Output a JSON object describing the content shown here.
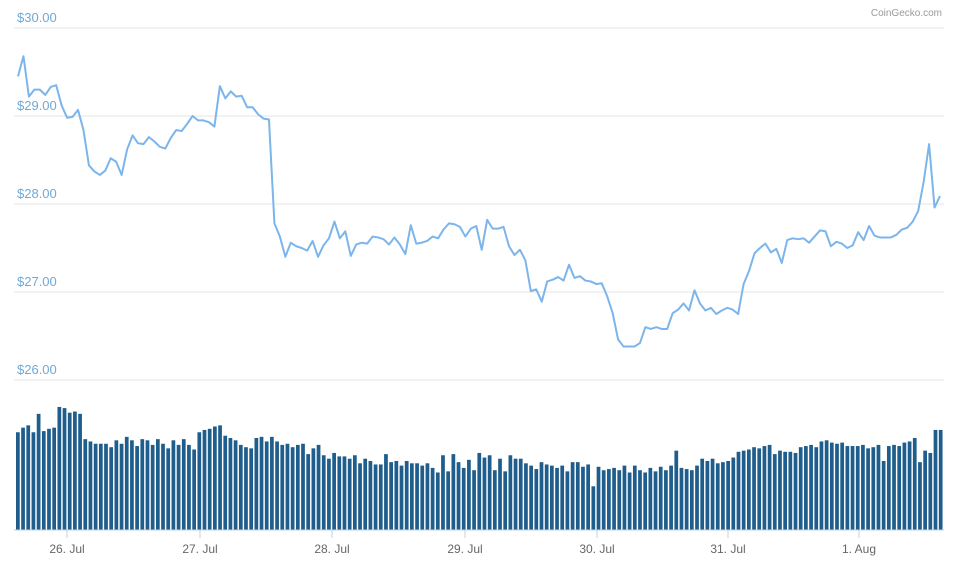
{
  "credit": "CoinGecko.com",
  "colors": {
    "price_line": "#7cb5ec",
    "volume_bar": "#1f5e8c",
    "grid": "#e6e6e6",
    "y_tick": "#6fa8d6"
  },
  "chart_data": {
    "type": "line",
    "title": "",
    "xlabel": "",
    "ylabel": "",
    "ylim": [
      26,
      30
    ],
    "y_ticks": [
      "$30.00",
      "$29.00",
      "$28.00",
      "$27.00",
      "$26.00"
    ],
    "x_ticks": [
      "26. Jul",
      "27. Jul",
      "28. Jul",
      "29. Jul",
      "30. Jul",
      "31. Jul",
      "1. Aug"
    ],
    "grid": true,
    "legend": "none",
    "series": [
      {
        "values": [
          29.45,
          29.68,
          29.22,
          29.3,
          29.3,
          29.24,
          29.33,
          29.35,
          29.12,
          28.98,
          28.99,
          29.07,
          28.84,
          28.44,
          28.37,
          28.33,
          28.38,
          28.52,
          28.48,
          28.33,
          28.62,
          28.78,
          28.69,
          28.68,
          28.76,
          28.71,
          28.65,
          28.63,
          28.75,
          28.84,
          28.83,
          28.91,
          29.0,
          28.95,
          28.95,
          28.93,
          28.88,
          29.34,
          29.2,
          29.28,
          29.22,
          29.23,
          29.1,
          29.1,
          29.02,
          28.97,
          28.96,
          27.78,
          27.63,
          27.4,
          27.56,
          27.52,
          27.5,
          27.47,
          27.58,
          27.4,
          27.53,
          27.61,
          27.8,
          27.61,
          27.69,
          27.41,
          27.54,
          27.56,
          27.55,
          27.63,
          27.62,
          27.6,
          27.54,
          27.62,
          27.54,
          27.43,
          27.76,
          27.55,
          27.56,
          27.58,
          27.63,
          27.61,
          27.71,
          27.78,
          27.77,
          27.74,
          27.63,
          27.72,
          27.75,
          27.48,
          27.82,
          27.72,
          27.72,
          27.74,
          27.52,
          27.42,
          27.48,
          27.36,
          27.01,
          27.03,
          26.89,
          27.12,
          27.14,
          27.17,
          27.13,
          27.31,
          27.16,
          27.18,
          27.13,
          27.12,
          27.09,
          27.1,
          26.95,
          26.76,
          26.46,
          26.38,
          26.38,
          26.38,
          26.42,
          26.6,
          26.58,
          26.6,
          26.58,
          26.58,
          26.76,
          26.8,
          26.87,
          26.79,
          27.02,
          26.87,
          26.79,
          26.82,
          26.75,
          26.79,
          26.82,
          26.8,
          26.75,
          27.09,
          27.24,
          27.44,
          27.5,
          27.55,
          27.45,
          27.49,
          27.33,
          27.59,
          27.61,
          27.6,
          27.61,
          27.56,
          27.63,
          27.7,
          27.69,
          27.52,
          27.57,
          27.55,
          27.5,
          27.53,
          27.68,
          27.59,
          27.75,
          27.64,
          27.62,
          27.62,
          27.62,
          27.65,
          27.71,
          27.73,
          27.8,
          27.92,
          28.25,
          28.68,
          27.96,
          28.09
        ]
      }
    ],
    "volume": [
      0.85,
      0.89,
      0.91,
      0.85,
      1.01,
      0.86,
      0.88,
      0.89,
      1.07,
      1.06,
      1.02,
      1.03,
      1.01,
      0.79,
      0.77,
      0.75,
      0.75,
      0.75,
      0.72,
      0.78,
      0.75,
      0.81,
      0.78,
      0.73,
      0.79,
      0.78,
      0.74,
      0.79,
      0.75,
      0.71,
      0.78,
      0.74,
      0.79,
      0.74,
      0.7,
      0.85,
      0.87,
      0.88,
      0.9,
      0.91,
      0.82,
      0.8,
      0.78,
      0.74,
      0.72,
      0.71,
      0.8,
      0.81,
      0.77,
      0.81,
      0.77,
      0.74,
      0.75,
      0.72,
      0.74,
      0.75,
      0.66,
      0.71,
      0.74,
      0.65,
      0.62,
      0.67,
      0.64,
      0.64,
      0.62,
      0.65,
      0.58,
      0.62,
      0.6,
      0.57,
      0.57,
      0.66,
      0.59,
      0.6,
      0.56,
      0.6,
      0.58,
      0.58,
      0.56,
      0.58,
      0.54,
      0.5,
      0.65,
      0.51,
      0.66,
      0.59,
      0.54,
      0.61,
      0.52,
      0.67,
      0.63,
      0.65,
      0.52,
      0.62,
      0.51,
      0.65,
      0.62,
      0.62,
      0.58,
      0.56,
      0.53,
      0.59,
      0.57,
      0.56,
      0.54,
      0.56,
      0.51,
      0.59,
      0.59,
      0.55,
      0.57,
      0.38,
      0.55,
      0.52,
      0.53,
      0.54,
      0.52,
      0.56,
      0.5,
      0.56,
      0.52,
      0.5,
      0.54,
      0.51,
      0.55,
      0.52,
      0.56,
      0.69,
      0.54,
      0.53,
      0.52,
      0.56,
      0.62,
      0.6,
      0.62,
      0.58,
      0.59,
      0.6,
      0.63,
      0.68,
      0.69,
      0.7,
      0.72,
      0.71,
      0.73,
      0.74,
      0.66,
      0.69,
      0.68,
      0.68,
      0.67,
      0.72,
      0.73,
      0.74,
      0.72,
      0.77,
      0.78,
      0.76,
      0.75,
      0.76,
      0.73,
      0.73,
      0.73,
      0.74,
      0.71,
      0.72,
      0.74,
      0.6,
      0.73,
      0.74,
      0.73,
      0.76,
      0.77,
      0.8,
      0.59,
      0.69,
      0.67,
      0.87,
      0.87
    ]
  }
}
